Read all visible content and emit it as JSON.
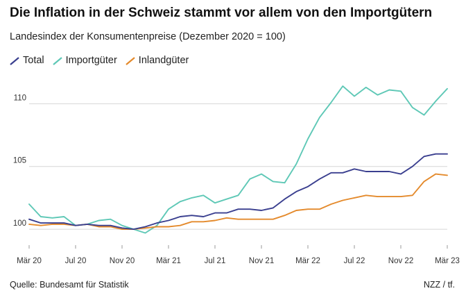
{
  "header": {
    "title": "Die Inflation in der Schweiz stammt vor allem von den Importgütern",
    "subtitle": "Landesindex der Konsumentenpreise (Dezember 2020 = 100)"
  },
  "legend": [
    {
      "label": "Total",
      "color": "#3a3f8f"
    },
    {
      "label": "Importgüter",
      "color": "#5ec8b6"
    },
    {
      "label": "Inlandgüter",
      "color": "#e48a2c"
    }
  ],
  "footer": {
    "source": "Quelle: Bundesamt für Statistik",
    "credit": "NZZ / tf."
  },
  "chart_data": {
    "type": "line",
    "x": [
      "2020-03",
      "2020-04",
      "2020-05",
      "2020-06",
      "2020-07",
      "2020-08",
      "2020-09",
      "2020-10",
      "2020-11",
      "2020-12",
      "2021-01",
      "2021-02",
      "2021-03",
      "2021-04",
      "2021-05",
      "2021-06",
      "2021-07",
      "2021-08",
      "2021-09",
      "2021-10",
      "2021-11",
      "2021-12",
      "2022-01",
      "2022-02",
      "2022-03",
      "2022-04",
      "2022-05",
      "2022-06",
      "2022-07",
      "2022-08",
      "2022-09",
      "2022-10",
      "2022-11",
      "2022-12",
      "2023-01",
      "2023-02",
      "2023-03"
    ],
    "x_ticks": [
      "Mär 20",
      "Jul 20",
      "Nov 20",
      "Mär 21",
      "Jul 21",
      "Nov 21",
      "Mär 22",
      "Jul 22",
      "Nov 22",
      "Mär 23"
    ],
    "y_ticks": [
      100,
      105,
      110
    ],
    "ylim": [
      98.9,
      111.9
    ],
    "grid": true,
    "series": [
      {
        "name": "Total",
        "color": "#3a3f8f",
        "values": [
          100.8,
          100.5,
          100.5,
          100.5,
          100.3,
          100.4,
          100.3,
          100.3,
          100.1,
          100.0,
          100.2,
          100.5,
          100.7,
          101.0,
          101.1,
          101.0,
          101.3,
          101.3,
          101.6,
          101.6,
          101.5,
          101.7,
          102.4,
          103.0,
          103.4,
          104.0,
          104.5,
          104.5,
          104.8,
          104.6,
          104.6,
          104.6,
          104.4,
          105.0,
          105.8,
          106.0,
          106.0
        ]
      },
      {
        "name": "Importgüter",
        "color": "#5ec8b6",
        "values": [
          102.0,
          101.0,
          100.9,
          101.0,
          100.3,
          100.4,
          100.7,
          100.8,
          100.3,
          100.0,
          99.7,
          100.3,
          101.6,
          102.2,
          102.5,
          102.7,
          102.1,
          102.4,
          102.7,
          104.0,
          104.4,
          103.8,
          103.7,
          105.2,
          107.2,
          108.9,
          110.1,
          111.4,
          110.6,
          111.3,
          110.7,
          111.1,
          111.0,
          109.7,
          109.1,
          110.2,
          111.2
        ]
      },
      {
        "name": "Inlandgüter",
        "color": "#e48a2c",
        "values": [
          100.4,
          100.3,
          100.4,
          100.4,
          100.3,
          100.4,
          100.2,
          100.2,
          100.0,
          100.0,
          100.1,
          100.2,
          100.2,
          100.3,
          100.6,
          100.6,
          100.7,
          100.9,
          100.8,
          100.8,
          100.8,
          100.8,
          101.1,
          101.5,
          101.6,
          101.6,
          102.0,
          102.3,
          102.5,
          102.7,
          102.6,
          102.6,
          102.6,
          102.7,
          103.8,
          104.4,
          104.3
        ]
      }
    ]
  }
}
